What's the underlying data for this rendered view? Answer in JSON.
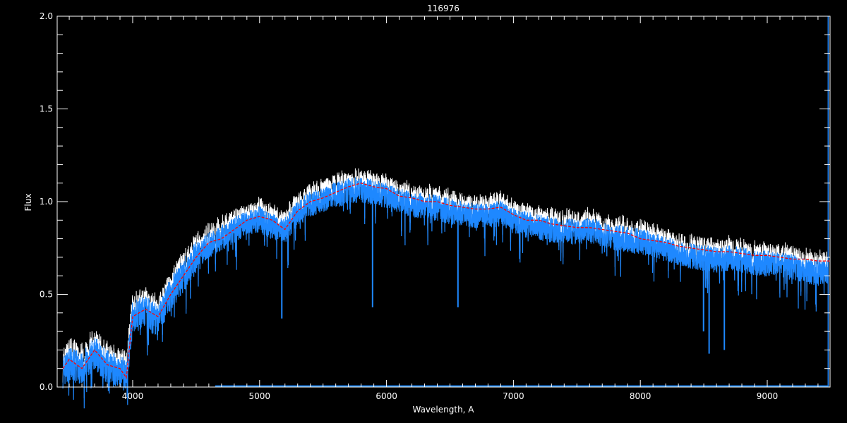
{
  "chart_data": {
    "type": "line",
    "title": "116976",
    "xlabel": "Wavelength, A",
    "ylabel": "Flux",
    "xlim": [
      3405,
      9495
    ],
    "ylim": [
      0.0,
      2.0
    ],
    "x_ticks": [
      "4000",
      "5000",
      "6000",
      "7000",
      "8000",
      "9000"
    ],
    "x_tick_values": [
      4000,
      5000,
      6000,
      7000,
      8000,
      9000
    ],
    "y_ticks": [
      "0.0",
      "0.5",
      "1.0",
      "1.5",
      "2.0"
    ],
    "y_tick_values": [
      0,
      0.5,
      1.0,
      1.5,
      2.0
    ],
    "x_minor_step": 100,
    "y_minor_step": 0.1,
    "grid": false,
    "background": "#000000",
    "axis_color": "#ffffff",
    "series": [
      {
        "color": "#1e88ff",
        "style": "observed flux (noisy)",
        "x": [
          3450,
          3500,
          3600,
          3700,
          3800,
          3900,
          3950,
          4000,
          4100,
          4200,
          4300,
          4400,
          4500,
          4600,
          4700,
          4800,
          4900,
          5000,
          5100,
          5200,
          5300,
          5400,
          5500,
          5600,
          5700,
          5800,
          5900,
          6000,
          6100,
          6200,
          6300,
          6400,
          6500,
          6600,
          6700,
          6800,
          6900,
          7000,
          7100,
          7200,
          7300,
          7400,
          7500,
          7600,
          7700,
          7800,
          7900,
          8000,
          8100,
          8200,
          8300,
          8400,
          8500,
          8600,
          8700,
          8800,
          8900,
          9000,
          9100,
          9200,
          9300,
          9400,
          9480
        ],
        "y": [
          0.1,
          0.14,
          0.12,
          0.2,
          0.13,
          0.1,
          0.08,
          0.4,
          0.42,
          0.38,
          0.52,
          0.62,
          0.72,
          0.78,
          0.82,
          0.86,
          0.9,
          0.92,
          0.88,
          0.86,
          0.95,
          1.0,
          1.02,
          1.05,
          1.07,
          1.08,
          1.06,
          1.05,
          1.02,
          1.0,
          0.99,
          0.98,
          0.96,
          0.95,
          0.94,
          0.94,
          0.95,
          0.91,
          0.89,
          0.88,
          0.86,
          0.86,
          0.85,
          0.86,
          0.84,
          0.82,
          0.81,
          0.8,
          0.78,
          0.76,
          0.74,
          0.72,
          0.71,
          0.7,
          0.71,
          0.7,
          0.68,
          0.68,
          0.67,
          0.66,
          0.64,
          0.63,
          0.64
        ],
        "absorption_lines": [
          {
            "x": 5175,
            "y": 0.37
          },
          {
            "x": 5890,
            "y": 0.43
          },
          {
            "x": 6563,
            "y": 0.43
          },
          {
            "x": 8498,
            "y": 0.3
          },
          {
            "x": 8542,
            "y": 0.18
          },
          {
            "x": 8662,
            "y": 0.2
          }
        ]
      },
      {
        "color": "#ff0000",
        "style": "smoothed model (dashed)",
        "x": [
          3450,
          3500,
          3600,
          3700,
          3800,
          3900,
          3950,
          4000,
          4100,
          4200,
          4300,
          4400,
          4500,
          4600,
          4700,
          4800,
          4900,
          5000,
          5100,
          5200,
          5300,
          5400,
          5500,
          5600,
          5700,
          5800,
          5900,
          6000,
          6100,
          6200,
          6300,
          6400,
          6500,
          6600,
          6700,
          6800,
          6900,
          7000,
          7100,
          7200,
          7300,
          7400,
          7500,
          7600,
          7700,
          7800,
          7900,
          8000,
          8100,
          8200,
          8300,
          8400,
          8500,
          8600,
          8700,
          8800,
          8900,
          9000,
          9100,
          9200,
          9300,
          9400,
          9495
        ],
        "y": [
          0.1,
          0.15,
          0.1,
          0.2,
          0.12,
          0.1,
          0.05,
          0.38,
          0.42,
          0.38,
          0.5,
          0.6,
          0.7,
          0.78,
          0.8,
          0.85,
          0.9,
          0.92,
          0.9,
          0.85,
          0.95,
          1.0,
          1.02,
          1.05,
          1.08,
          1.1,
          1.08,
          1.07,
          1.03,
          1.02,
          1.0,
          1.0,
          0.98,
          0.97,
          0.96,
          0.96,
          0.97,
          0.93,
          0.9,
          0.9,
          0.88,
          0.87,
          0.86,
          0.86,
          0.85,
          0.84,
          0.83,
          0.8,
          0.79,
          0.78,
          0.76,
          0.75,
          0.74,
          0.73,
          0.73,
          0.72,
          0.71,
          0.71,
          0.7,
          0.69,
          0.69,
          0.68,
          0.68
        ]
      }
    ]
  }
}
